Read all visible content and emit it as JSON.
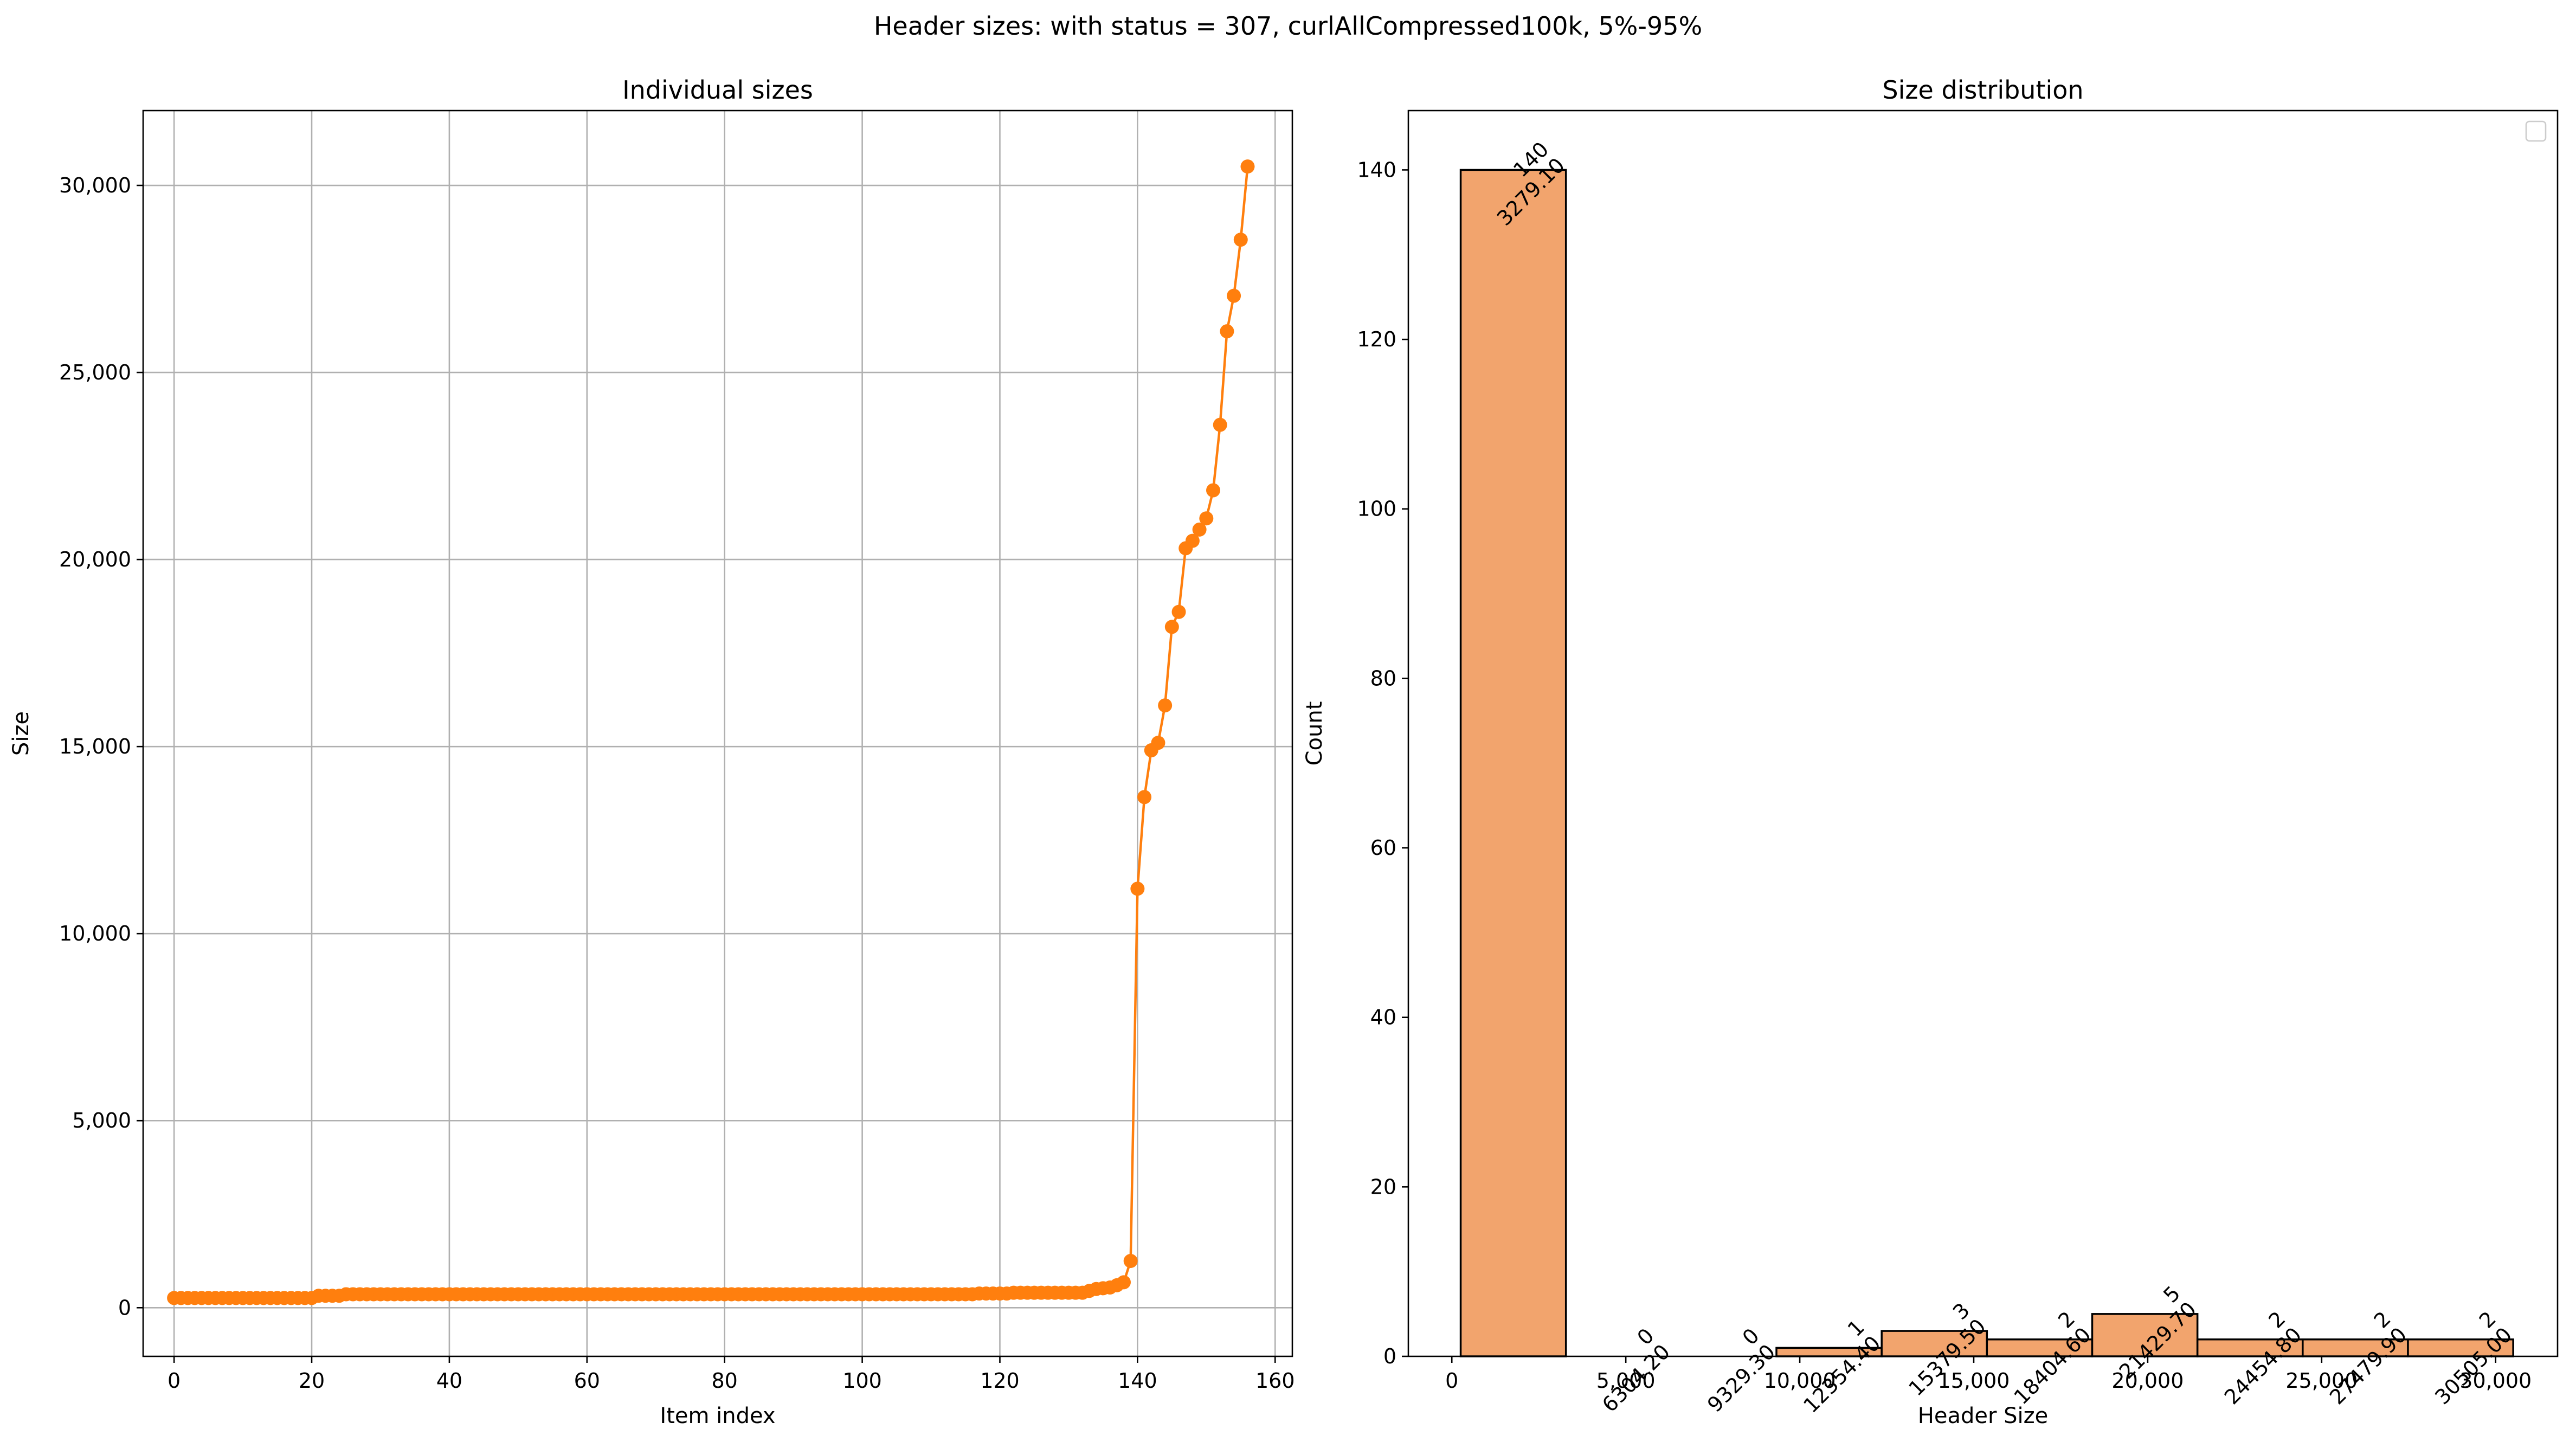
{
  "figure": {
    "title": "Header sizes: with status = 307, curlAllCompressed100k, 5%-95%"
  },
  "chart_data": [
    {
      "type": "line",
      "title": "Individual sizes",
      "xlabel": "Item index",
      "ylabel": "Size",
      "xlim": [
        -4.5,
        162.5
      ],
      "ylim": [
        -1300,
        32000
      ],
      "xticks": [
        0,
        20,
        40,
        60,
        80,
        100,
        120,
        140,
        160
      ],
      "xtick_labels": [
        "0",
        "20",
        "40",
        "60",
        "80",
        "100",
        "120",
        "140",
        "160"
      ],
      "yticks": [
        0,
        5000,
        10000,
        15000,
        20000,
        25000,
        30000
      ],
      "ytick_labels": [
        "0",
        "5,000",
        "10,000",
        "15,000",
        "20,000",
        "25,000",
        "30,000"
      ],
      "grid": true,
      "marker": "circle",
      "color": "#ff7f0e",
      "series": [
        {
          "segments": [
            {
              "from": 0,
              "to": 20,
              "value": 260
            },
            {
              "from": 21,
              "to": 24,
              "value": 320
            },
            {
              "from": 25,
              "to": 116,
              "value": 360
            },
            {
              "from": 117,
              "to": 121,
              "value": 380
            },
            {
              "from": 122,
              "to": 132,
              "value": 400
            }
          ],
          "points": [
            [
              133,
              450
            ],
            [
              134,
              500
            ],
            [
              135,
              520
            ],
            [
              136,
              540
            ],
            [
              137,
              600
            ],
            [
              138,
              680
            ],
            [
              139,
              1250
            ],
            [
              140,
              11200
            ],
            [
              141,
              13650
            ],
            [
              142,
              14900
            ],
            [
              143,
              15100
            ],
            [
              144,
              16100
            ],
            [
              145,
              18200
            ],
            [
              146,
              18600
            ],
            [
              147,
              20300
            ],
            [
              148,
              20500
            ],
            [
              149,
              20800
            ],
            [
              150,
              21100
            ],
            [
              151,
              21850
            ],
            [
              152,
              23600
            ],
            [
              153,
              26100
            ],
            [
              154,
              27050
            ],
            [
              155,
              28550
            ],
            [
              156,
              30505
            ]
          ]
        }
      ]
    },
    {
      "type": "bar",
      "title": "Size distribution",
      "xlabel": "Header Size",
      "ylabel": "Count",
      "xlim": [
        -1250,
        31780
      ],
      "ylim": [
        0,
        147
      ],
      "xticks": [
        0,
        5000,
        10000,
        15000,
        20000,
        25000,
        30000
      ],
      "xtick_labels": [
        "0",
        "5,000",
        "10,000",
        "15,000",
        "20,000",
        "25,000",
        "30,000"
      ],
      "yticks": [
        0,
        20,
        40,
        60,
        80,
        100,
        120,
        140
      ],
      "ytick_labels": [
        "0",
        "20",
        "40",
        "60",
        "80",
        "100",
        "120",
        "140"
      ],
      "grid": false,
      "legend": "top-right",
      "bar_color": "#f2a46d",
      "bin_edges": [
        254.0,
        3279.1,
        6304.2,
        9329.3,
        12354.4,
        15379.5,
        18404.6,
        21429.7,
        24454.8,
        27479.9,
        30505.0
      ],
      "values": [
        140,
        0,
        0,
        1,
        3,
        2,
        5,
        2,
        2,
        2
      ],
      "data_labels": [
        {
          "count": "140",
          "edge": "3279.10"
        },
        {
          "count": "0",
          "edge": "6304.20"
        },
        {
          "count": "0",
          "edge": "9329.30"
        },
        {
          "count": "1",
          "edge": "12354.40"
        },
        {
          "count": "3",
          "edge": "15379.50"
        },
        {
          "count": "2",
          "edge": "18404.60"
        },
        {
          "count": "5",
          "edge": "21429.70"
        },
        {
          "count": "2",
          "edge": "24454.80"
        },
        {
          "count": "2",
          "edge": "27479.90"
        },
        {
          "count": "2",
          "edge": "30505.00"
        }
      ]
    }
  ]
}
